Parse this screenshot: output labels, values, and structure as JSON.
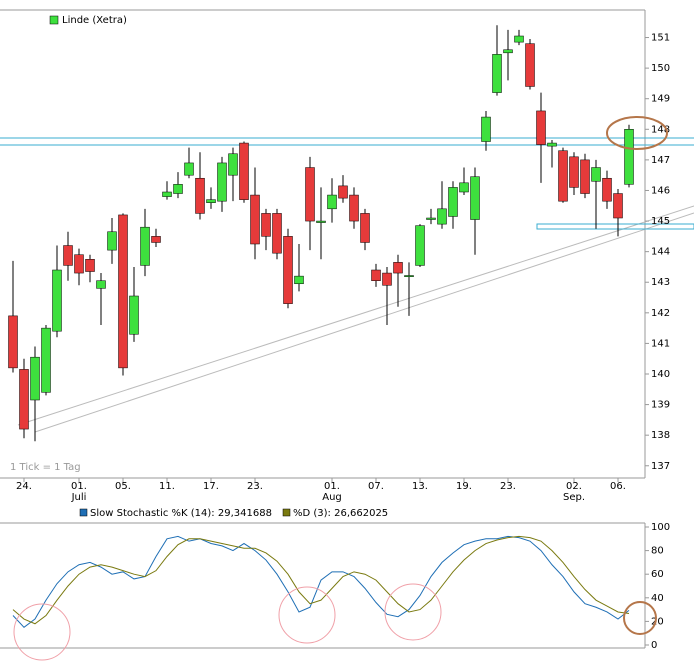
{
  "chart_data": [
    {
      "type": "candlestick",
      "legend": "Linde (Xetra)",
      "note": "1 Tick = 1 Tag",
      "categories": [
        null,
        "24.",
        null,
        null,
        null,
        null,
        "01.",
        null,
        null,
        null,
        "05.",
        null,
        null,
        null,
        "11.",
        null,
        null,
        null,
        "17.",
        null,
        null,
        null,
        "23.",
        null,
        null,
        null,
        null,
        null,
        null,
        "01.",
        null,
        null,
        null,
        "07.",
        null,
        null,
        null,
        "13.",
        null,
        null,
        null,
        "19.",
        null,
        null,
        null,
        "23.",
        null,
        null,
        null,
        null,
        null,
        "02.",
        null,
        null,
        null,
        "06.",
        null
      ],
      "month_labels": [
        null,
        null,
        null,
        null,
        null,
        null,
        "Juli",
        null,
        null,
        null,
        null,
        null,
        null,
        null,
        null,
        null,
        null,
        null,
        null,
        null,
        null,
        null,
        null,
        null,
        null,
        null,
        null,
        null,
        null,
        "Aug",
        null,
        null,
        null,
        null,
        null,
        null,
        null,
        null,
        null,
        null,
        null,
        null,
        null,
        null,
        null,
        null,
        null,
        null,
        null,
        null,
        null,
        "Sep.",
        null,
        null,
        null,
        null,
        null
      ],
      "open": [
        141.9,
        140.15,
        139.15,
        139.4,
        141.4,
        144.2,
        143.9,
        143.75,
        142.8,
        144.05,
        145.2,
        141.3,
        143.55,
        144.5,
        145.8,
        145.9,
        146.5,
        146.4,
        145.6,
        145.65,
        146.5,
        147.55,
        145.85,
        145.25,
        145.25,
        144.5,
        142.95,
        146.75,
        144.95,
        145.4,
        146.15,
        145.85,
        145.25,
        143.4,
        143.3,
        143.65,
        143.18,
        143.55,
        145.05,
        144.9,
        145.15,
        145.95,
        145.05,
        147.6,
        149.2,
        150.5,
        150.85,
        150.8,
        148.6,
        147.45,
        147.3,
        147.1,
        147.0,
        146.3,
        146.4,
        145.9,
        146.2
      ],
      "high": [
        143.7,
        140.5,
        140.9,
        141.6,
        144.2,
        144.65,
        144.1,
        143.9,
        143.3,
        145.1,
        145.25,
        143.5,
        145.4,
        144.75,
        146.3,
        146.6,
        147.4,
        147.25,
        146.1,
        147.1,
        147.4,
        147.6,
        146.75,
        145.4,
        145.4,
        144.75,
        144.25,
        147.1,
        146.1,
        146.4,
        146.5,
        146.1,
        145.4,
        143.6,
        143.5,
        143.9,
        143.65,
        144.9,
        145.4,
        146.3,
        146.3,
        146.75,
        146.75,
        148.6,
        151.4,
        151.25,
        151.25,
        150.95,
        149.2,
        147.65,
        147.4,
        147.25,
        147.2,
        147.0,
        146.65,
        146.05,
        148.15
      ],
      "low": [
        140.05,
        137.9,
        137.8,
        139.3,
        141.2,
        143.05,
        142.9,
        143.0,
        141.6,
        143.6,
        139.95,
        141.05,
        143.2,
        144.15,
        145.7,
        145.75,
        146.4,
        145.05,
        145.4,
        145.3,
        145.65,
        145.6,
        143.75,
        144.05,
        143.75,
        142.15,
        142.7,
        144.05,
        143.75,
        144.95,
        145.6,
        144.75,
        144.05,
        142.85,
        141.6,
        142.2,
        141.9,
        143.5,
        144.9,
        144.75,
        144.75,
        145.85,
        143.9,
        147.3,
        149.1,
        149.6,
        150.75,
        149.3,
        146.25,
        146.75,
        145.6,
        145.85,
        145.75,
        144.75,
        145.4,
        144.5,
        146.1
      ],
      "close": [
        140.2,
        138.2,
        140.55,
        141.5,
        143.4,
        143.55,
        143.3,
        143.35,
        143.05,
        144.65,
        140.2,
        142.55,
        144.8,
        144.3,
        145.95,
        146.2,
        146.9,
        145.25,
        145.7,
        146.9,
        147.2,
        145.7,
        144.25,
        144.5,
        143.95,
        142.3,
        143.2,
        145.0,
        145.0,
        145.85,
        145.75,
        145.0,
        144.3,
        143.05,
        142.9,
        143.3,
        143.22,
        144.85,
        145.1,
        145.4,
        146.1,
        146.25,
        146.45,
        148.4,
        150.45,
        150.6,
        151.05,
        149.4,
        147.5,
        147.55,
        145.65,
        146.1,
        145.9,
        146.75,
        145.65,
        145.1,
        148.0
      ],
      "up_color": "#3ee03e",
      "down_color": "#e63a3a",
      "ylim": [
        136.6,
        151.9
      ],
      "yticks": [
        137,
        138,
        139,
        140,
        141,
        142,
        143,
        144,
        145,
        146,
        147,
        148,
        149,
        150,
        151
      ]
    },
    {
      "type": "line",
      "series": [
        {
          "name": "Slow Stochastic %K (14): 29,341688",
          "color": "#1f6fb5",
          "values": [
            25,
            15,
            22,
            38,
            52,
            62,
            68,
            70,
            66,
            60,
            62,
            56,
            58,
            75,
            90,
            92,
            88,
            90,
            86,
            84,
            80,
            86,
            80,
            72,
            60,
            45,
            28,
            32,
            55,
            62,
            62,
            58,
            48,
            36,
            26,
            24,
            30,
            42,
            58,
            70,
            78,
            85,
            88,
            90,
            90,
            92,
            91,
            88,
            80,
            68,
            58,
            45,
            35,
            32,
            28,
            22,
            29.34
          ]
        },
        {
          "name": "%D (3): 26,662025",
          "color": "#7a7a10",
          "values": [
            30,
            22,
            18,
            25,
            38,
            50,
            60,
            66,
            68,
            66,
            63,
            60,
            58,
            63,
            75,
            85,
            90,
            90,
            88,
            86,
            84,
            82,
            82,
            78,
            71,
            60,
            45,
            35,
            38,
            48,
            58,
            62,
            60,
            55,
            45,
            35,
            28,
            30,
            38,
            50,
            62,
            72,
            80,
            86,
            89,
            91,
            92,
            91,
            88,
            80,
            70,
            58,
            47,
            38,
            33,
            28,
            26.66
          ]
        }
      ],
      "ylim": [
        0,
        100
      ],
      "yticks": [
        0,
        20,
        40,
        60,
        80,
        100
      ]
    }
  ]
}
